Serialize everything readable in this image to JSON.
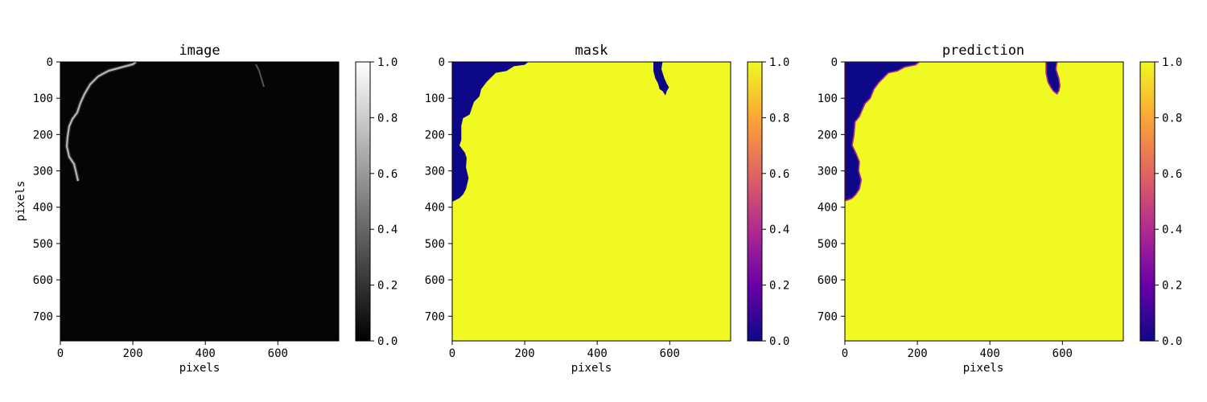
{
  "chart_data": [
    {
      "type": "heatmap",
      "title": "image",
      "xlabel": "pixels",
      "ylabel": "pixels",
      "xlim": [
        0,
        768
      ],
      "ylim": [
        768,
        0
      ],
      "x_ticks": [
        "0",
        "200",
        "400",
        "600"
      ],
      "y_ticks": [
        "0",
        "100",
        "200",
        "300",
        "400",
        "500",
        "600",
        "700"
      ],
      "colormap": "gray",
      "colorbar": {
        "min": 0.0,
        "max": 1.0,
        "ticks": [
          "0.0",
          "0.2",
          "0.4",
          "0.6",
          "0.8",
          "1.0"
        ]
      },
      "content": "mostly near-zero intensity with a bright thin edge along the tissue boundary at upper left and a faint bright streak near the top at x≈540"
    },
    {
      "type": "heatmap",
      "title": "mask",
      "xlabel": "pixels",
      "ylabel": "",
      "xlim": [
        0,
        768
      ],
      "ylim": [
        768,
        0
      ],
      "x_ticks": [
        "0",
        "200",
        "400",
        "600"
      ],
      "y_ticks": [
        "0",
        "100",
        "200",
        "300",
        "400",
        "500",
        "600",
        "700"
      ],
      "colormap": "plasma",
      "colorbar": {
        "min": 0.0,
        "max": 1.0,
        "ticks": [
          "0.0",
          "0.2",
          "0.4",
          "0.6",
          "0.8",
          "1.0"
        ]
      },
      "background_value": 1.0,
      "zero_regions": [
        {
          "name": "upper-left",
          "outline": [
            [
              0,
              0
            ],
            [
              210,
              0
            ],
            [
              200,
              8
            ],
            [
              170,
              12
            ],
            [
              150,
              25
            ],
            [
              120,
              30
            ],
            [
              95,
              55
            ],
            [
              80,
              75
            ],
            [
              75,
              95
            ],
            [
              60,
              110
            ],
            [
              48,
              145
            ],
            [
              30,
              155
            ],
            [
              25,
              175
            ],
            [
              25,
              215
            ],
            [
              20,
              230
            ],
            [
              35,
              250
            ],
            [
              40,
              265
            ],
            [
              38,
              290
            ],
            [
              45,
              320
            ],
            [
              38,
              350
            ],
            [
              30,
              365
            ],
            [
              20,
              375
            ],
            [
              10,
              380
            ],
            [
              0,
              385
            ]
          ]
        },
        {
          "name": "top-notch",
          "outline": [
            [
              555,
              0
            ],
            [
              580,
              0
            ],
            [
              577,
              20
            ],
            [
              585,
              45
            ],
            [
              592,
              60
            ],
            [
              598,
              70
            ],
            [
              592,
              80
            ],
            [
              588,
              92
            ],
            [
              580,
              80
            ],
            [
              572,
              75
            ],
            [
              568,
              60
            ],
            [
              560,
              45
            ],
            [
              555,
              25
            ]
          ]
        }
      ]
    },
    {
      "type": "heatmap",
      "title": "prediction",
      "xlabel": "pixels",
      "ylabel": "",
      "xlim": [
        0,
        768
      ],
      "ylim": [
        768,
        0
      ],
      "x_ticks": [
        "0",
        "200",
        "400",
        "600"
      ],
      "y_ticks": [
        "0",
        "100",
        "200",
        "300",
        "400",
        "500",
        "600",
        "700"
      ],
      "colormap": "plasma",
      "colorbar": {
        "min": 0.0,
        "max": 1.0,
        "ticks": [
          "0.0",
          "0.2",
          "0.4",
          "0.6",
          "0.8",
          "1.0"
        ]
      },
      "background_value": 1.0,
      "zero_regions": [
        {
          "name": "upper-left",
          "outline": [
            [
              0,
              0
            ],
            [
              205,
              0
            ],
            [
              195,
              8
            ],
            [
              165,
              14
            ],
            [
              145,
              25
            ],
            [
              120,
              30
            ],
            [
              95,
              55
            ],
            [
              80,
              75
            ],
            [
              70,
              100
            ],
            [
              55,
              115
            ],
            [
              40,
              150
            ],
            [
              28,
              165
            ],
            [
              25,
              200
            ],
            [
              20,
              230
            ],
            [
              32,
              255
            ],
            [
              40,
              275
            ],
            [
              38,
              300
            ],
            [
              45,
              325
            ],
            [
              40,
              350
            ],
            [
              30,
              365
            ],
            [
              20,
              375
            ],
            [
              8,
              380
            ],
            [
              0,
              382
            ]
          ]
        },
        {
          "name": "top-notch",
          "outline": [
            [
              555,
              0
            ],
            [
              585,
              0
            ],
            [
              582,
              20
            ],
            [
              590,
              45
            ],
            [
              593,
              65
            ],
            [
              590,
              80
            ],
            [
              585,
              88
            ],
            [
              575,
              80
            ],
            [
              568,
              70
            ],
            [
              560,
              55
            ],
            [
              555,
              30
            ]
          ]
        }
      ]
    }
  ]
}
